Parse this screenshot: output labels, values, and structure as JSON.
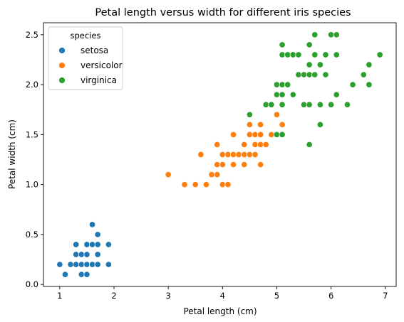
{
  "chart_data": {
    "type": "scatter",
    "title": "Petal length versus width for different iris species",
    "xlabel": "Petal length (cm)",
    "ylabel": "Petal width (cm)",
    "xlim": [
      0.7,
      7.2
    ],
    "ylim": [
      -0.02,
      2.62
    ],
    "xticks": [
      1,
      2,
      3,
      4,
      5,
      6,
      7
    ],
    "yticks": [
      0.0,
      0.5,
      1.0,
      1.5,
      2.0,
      2.5
    ],
    "xtick_labels": [
      "1",
      "2",
      "3",
      "4",
      "5",
      "6",
      "7"
    ],
    "ytick_labels": [
      "0.0",
      "0.5",
      "1.0",
      "1.5",
      "2.0",
      "2.5"
    ],
    "grid": false,
    "legend": {
      "title": "species",
      "position": "top-left"
    },
    "series": [
      {
        "name": "setosa",
        "color": "#1f77b4",
        "points": [
          [
            1.0,
            0.2
          ],
          [
            1.1,
            0.1
          ],
          [
            1.2,
            0.2
          ],
          [
            1.3,
            0.2
          ],
          [
            1.3,
            0.3
          ],
          [
            1.3,
            0.4
          ],
          [
            1.4,
            0.1
          ],
          [
            1.4,
            0.2
          ],
          [
            1.4,
            0.3
          ],
          [
            1.5,
            0.1
          ],
          [
            1.5,
            0.2
          ],
          [
            1.5,
            0.3
          ],
          [
            1.5,
            0.4
          ],
          [
            1.6,
            0.2
          ],
          [
            1.6,
            0.4
          ],
          [
            1.6,
            0.6
          ],
          [
            1.7,
            0.2
          ],
          [
            1.7,
            0.3
          ],
          [
            1.7,
            0.4
          ],
          [
            1.7,
            0.5
          ],
          [
            1.9,
            0.2
          ],
          [
            1.9,
            0.4
          ]
        ]
      },
      {
        "name": "versicolor",
        "color": "#ff7f0e",
        "points": [
          [
            3.0,
            1.1
          ],
          [
            3.3,
            1.0
          ],
          [
            3.5,
            1.0
          ],
          [
            3.6,
            1.3
          ],
          [
            3.7,
            1.0
          ],
          [
            3.8,
            1.1
          ],
          [
            3.9,
            1.1
          ],
          [
            3.9,
            1.2
          ],
          [
            3.9,
            1.4
          ],
          [
            4.0,
            1.0
          ],
          [
            4.0,
            1.2
          ],
          [
            4.0,
            1.3
          ],
          [
            4.1,
            1.0
          ],
          [
            4.1,
            1.3
          ],
          [
            4.2,
            1.2
          ],
          [
            4.2,
            1.3
          ],
          [
            4.2,
            1.5
          ],
          [
            4.3,
            1.3
          ],
          [
            4.4,
            1.2
          ],
          [
            4.4,
            1.3
          ],
          [
            4.4,
            1.4
          ],
          [
            4.5,
            1.3
          ],
          [
            4.5,
            1.5
          ],
          [
            4.5,
            1.6
          ],
          [
            4.6,
            1.3
          ],
          [
            4.6,
            1.4
          ],
          [
            4.6,
            1.5
          ],
          [
            4.7,
            1.2
          ],
          [
            4.7,
            1.4
          ],
          [
            4.7,
            1.5
          ],
          [
            4.7,
            1.6
          ],
          [
            4.8,
            1.4
          ],
          [
            4.8,
            1.8
          ],
          [
            4.9,
            1.5
          ],
          [
            5.0,
            1.7
          ],
          [
            5.1,
            1.6
          ]
        ]
      },
      {
        "name": "virginica",
        "color": "#2ca02c",
        "points": [
          [
            4.5,
            1.7
          ],
          [
            4.8,
            1.8
          ],
          [
            4.9,
            1.8
          ],
          [
            5.0,
            1.5
          ],
          [
            5.0,
            1.9
          ],
          [
            5.0,
            2.0
          ],
          [
            5.1,
            1.5
          ],
          [
            5.1,
            1.8
          ],
          [
            5.1,
            1.9
          ],
          [
            5.1,
            2.0
          ],
          [
            5.1,
            2.3
          ],
          [
            5.1,
            2.4
          ],
          [
            5.2,
            2.0
          ],
          [
            5.2,
            2.3
          ],
          [
            5.3,
            1.9
          ],
          [
            5.3,
            2.3
          ],
          [
            5.4,
            2.1
          ],
          [
            5.4,
            2.3
          ],
          [
            5.5,
            1.8
          ],
          [
            5.5,
            2.1
          ],
          [
            5.6,
            1.4
          ],
          [
            5.6,
            1.8
          ],
          [
            5.6,
            2.1
          ],
          [
            5.6,
            2.2
          ],
          [
            5.6,
            2.4
          ],
          [
            5.7,
            2.1
          ],
          [
            5.7,
            2.3
          ],
          [
            5.7,
            2.5
          ],
          [
            5.8,
            1.6
          ],
          [
            5.8,
            1.8
          ],
          [
            5.8,
            2.2
          ],
          [
            5.9,
            2.1
          ],
          [
            5.9,
            2.3
          ],
          [
            6.0,
            1.8
          ],
          [
            6.0,
            2.5
          ],
          [
            6.1,
            1.9
          ],
          [
            6.1,
            2.3
          ],
          [
            6.1,
            2.5
          ],
          [
            6.3,
            1.8
          ],
          [
            6.4,
            2.0
          ],
          [
            6.6,
            2.1
          ],
          [
            6.7,
            2.0
          ],
          [
            6.7,
            2.2
          ],
          [
            6.9,
            2.3
          ]
        ]
      }
    ]
  }
}
